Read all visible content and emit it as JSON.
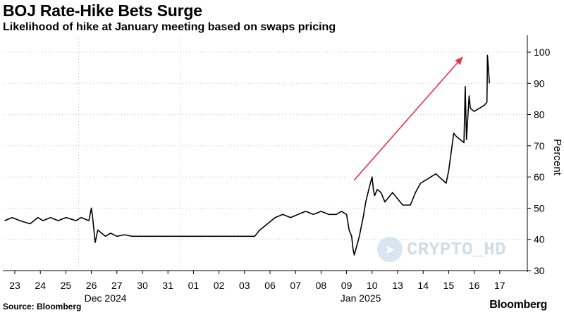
{
  "header": {
    "title": "BOJ Rate-Hike Bets Surge",
    "subtitle": "Likelihood of hike at January meeting based on swaps pricing"
  },
  "footer": {
    "source": "Source: Bloomberg",
    "brand": "Bloomberg"
  },
  "watermark": {
    "text": "CRYPTO_HD",
    "icon": "telegram-icon"
  },
  "colors": {
    "line": "#000000",
    "arrow": "#e8334a",
    "gridline": "#c8c8c8"
  },
  "chart_data": {
    "type": "line",
    "title": "BOJ Rate-Hike Bets Surge",
    "subtitle": "Likelihood of hike at January meeting based on swaps pricing",
    "ylabel": "Percent",
    "ylim": [
      30,
      100
    ],
    "yticks": [
      30,
      40,
      50,
      60,
      70,
      80,
      90,
      100
    ],
    "grid": "horizontal dotted",
    "y_axis_side": "right",
    "xtick_labels": [
      "23",
      "24",
      "25",
      "26",
      "27",
      "30",
      "31",
      "01",
      "02",
      "03",
      "06",
      "07",
      "08",
      "09",
      "10",
      "13",
      "14",
      "15",
      "16",
      "17"
    ],
    "month_labels": [
      {
        "label": "Dec 2024",
        "under_tick": 3
      },
      {
        "label": "Jan 2025",
        "under_tick": 13
      }
    ],
    "series": [
      {
        "x": [
          -0.4,
          -0.1,
          0.2,
          0.6,
          0.9,
          1.1,
          1.4,
          1.7,
          2.0,
          2.4,
          2.6,
          2.9,
          3.0,
          3.05,
          3.1,
          3.15,
          3.25,
          3.4,
          3.55,
          3.75,
          4.0,
          4.3,
          4.6,
          5.0,
          5.5,
          6.0,
          6.5,
          7.0,
          7.5,
          8.0,
          8.5,
          9.0,
          9.2,
          9.4,
          9.6,
          9.9,
          10.2,
          10.5,
          10.8,
          11.1,
          11.4,
          11.7,
          12.0,
          12.3,
          12.6,
          12.8,
          13.0,
          13.1,
          13.2,
          13.25,
          13.3,
          13.4,
          13.5,
          13.65,
          13.75,
          13.9,
          14.0,
          14.05,
          14.1,
          14.2,
          14.35,
          14.5,
          14.8,
          15.2,
          15.5,
          15.7,
          15.9,
          16.3,
          16.5,
          16.9,
          17.0,
          17.2,
          17.3,
          17.45,
          17.6,
          17.65,
          17.7,
          17.8,
          17.85,
          18.0,
          18.4,
          18.5,
          18.52,
          18.6
        ],
        "y": [
          46,
          47,
          46,
          45,
          47,
          46,
          47,
          46,
          47,
          46,
          47,
          46,
          50,
          47,
          43,
          39,
          43,
          42,
          41,
          42,
          41,
          41.5,
          41,
          41,
          41,
          41,
          41,
          41,
          41,
          41,
          41,
          41,
          41,
          41,
          43,
          45,
          47,
          48,
          47,
          48,
          49,
          48,
          49,
          48,
          48,
          49,
          48,
          43,
          41,
          37,
          35,
          38,
          41,
          47,
          52,
          57,
          60,
          56,
          54,
          56,
          55,
          52,
          55,
          51,
          51,
          55,
          58,
          60,
          61,
          58,
          62,
          74,
          73,
          72,
          71,
          89,
          72,
          86,
          82,
          81,
          83,
          84,
          99,
          90
        ]
      }
    ],
    "annotations": [
      {
        "type": "arrow",
        "color": "#e8334a",
        "from": {
          "x": 13.3,
          "y": 59
        },
        "to": {
          "x": 17.55,
          "y": 98.5
        }
      }
    ]
  }
}
